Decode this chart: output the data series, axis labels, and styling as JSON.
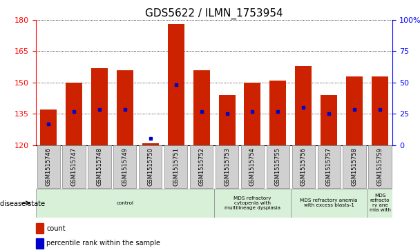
{
  "title": "GDS5622 / ILMN_1753954",
  "samples": [
    "GSM1515746",
    "GSM1515747",
    "GSM1515748",
    "GSM1515749",
    "GSM1515750",
    "GSM1515751",
    "GSM1515752",
    "GSM1515753",
    "GSM1515754",
    "GSM1515755",
    "GSM1515756",
    "GSM1515757",
    "GSM1515758",
    "GSM1515759"
  ],
  "bar_values": [
    137,
    150,
    157,
    156,
    121,
    178,
    156,
    144,
    150,
    151,
    158,
    144,
    153,
    153
  ],
  "blue_dot_y": [
    130,
    136,
    137,
    137,
    123,
    149,
    136,
    135,
    136,
    136,
    138,
    135,
    137,
    137
  ],
  "ylim_left": [
    120,
    180
  ],
  "ylim_right": [
    0,
    100
  ],
  "yticks_left": [
    120,
    135,
    150,
    165,
    180
  ],
  "yticks_right": [
    0,
    25,
    50,
    75,
    100
  ],
  "bar_color": "#cc2200",
  "dot_color": "#0000cc",
  "disease_groups": [
    {
      "label": "control",
      "start": 0,
      "end": 7
    },
    {
      "label": "MDS refractory\ncytopenia with\nmultilineage dysplasia",
      "start": 7,
      "end": 10
    },
    {
      "label": "MDS refractory anemia\nwith excess blasts-1",
      "start": 10,
      "end": 13
    },
    {
      "label": "MDS\nrefracto\nry ane\nmia with",
      "start": 13,
      "end": 14
    }
  ],
  "legend_items": [
    {
      "label": "count",
      "color": "#cc2200"
    },
    {
      "label": "percentile rank within the sample",
      "color": "#0000cc"
    }
  ],
  "bar_width": 0.65,
  "tick_fontsize": 7,
  "title_fontsize": 11
}
